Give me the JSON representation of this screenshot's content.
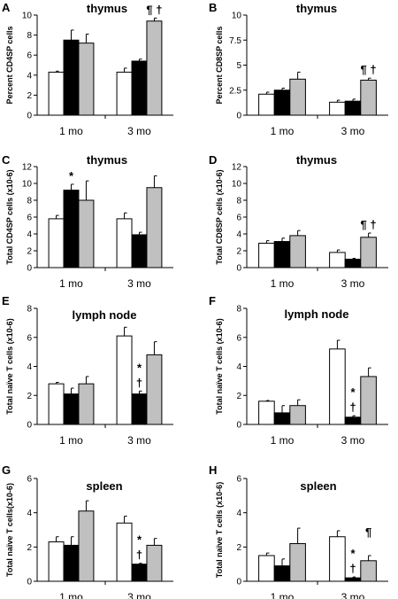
{
  "chart_data": [
    {
      "type": "bar",
      "panel": "A",
      "title": "thymus",
      "ylabel": "Percent CD4SP cells",
      "ylim": [
        0,
        10
      ],
      "yticks": [
        0,
        2,
        4,
        6,
        8,
        10
      ],
      "categories": [
        "1 mo",
        "3 mo"
      ],
      "series": [
        {
          "fill": "#ffffff",
          "values": [
            4.3,
            4.3
          ],
          "errors": [
            0.1,
            0.4
          ]
        },
        {
          "fill": "#000000",
          "values": [
            7.5,
            5.4
          ],
          "errors": [
            1.0,
            0.2
          ]
        },
        {
          "fill": "#c0c0c0",
          "values": [
            7.2,
            9.4
          ],
          "errors": [
            0.9,
            0.3
          ]
        }
      ],
      "annotations": [
        {
          "text": "¶ †",
          "category": 1,
          "series": 2
        }
      ]
    },
    {
      "type": "bar",
      "panel": "B",
      "title": "thymus",
      "ylabel": "Percent CD8SP cells",
      "ylim": [
        0,
        10
      ],
      "yticks": [
        0,
        2.5,
        5,
        7.5,
        10
      ],
      "categories": [
        "1 mo",
        "3 mo"
      ],
      "series": [
        {
          "fill": "#ffffff",
          "values": [
            2.1,
            1.3
          ],
          "errors": [
            0.2,
            0.2
          ]
        },
        {
          "fill": "#000000",
          "values": [
            2.5,
            1.4
          ],
          "errors": [
            0.2,
            0.2
          ]
        },
        {
          "fill": "#c0c0c0",
          "values": [
            3.6,
            3.5
          ],
          "errors": [
            0.7,
            0.2
          ]
        }
      ],
      "annotations": [
        {
          "text": "¶ †",
          "category": 1,
          "series": 2
        }
      ]
    },
    {
      "type": "bar",
      "panel": "C",
      "title": "thymus",
      "ylabel": "Total CD4SP cells (x10-6)",
      "ylim": [
        0,
        12
      ],
      "yticks": [
        0,
        2,
        4,
        6,
        8,
        10,
        12
      ],
      "categories": [
        "1 mo",
        "3 mo"
      ],
      "series": [
        {
          "fill": "#ffffff",
          "values": [
            5.8,
            5.8
          ],
          "errors": [
            0.4,
            0.7
          ]
        },
        {
          "fill": "#000000",
          "values": [
            9.2,
            3.9
          ],
          "errors": [
            0.7,
            0.3
          ]
        },
        {
          "fill": "#c0c0c0",
          "values": [
            8.0,
            9.5
          ],
          "errors": [
            2.3,
            1.4
          ]
        }
      ],
      "annotations": [
        {
          "text": "*",
          "category": 0,
          "series": 1
        }
      ]
    },
    {
      "type": "bar",
      "panel": "D",
      "title": "thymus",
      "ylabel": "Total CD8SP cells (x10-6)",
      "ylim": [
        0,
        12
      ],
      "yticks": [
        0,
        2,
        4,
        6,
        8,
        10,
        12
      ],
      "categories": [
        "1 mo",
        "3 mo"
      ],
      "series": [
        {
          "fill": "#ffffff",
          "values": [
            2.9,
            1.8
          ],
          "errors": [
            0.3,
            0.3
          ]
        },
        {
          "fill": "#000000",
          "values": [
            3.1,
            1.0
          ],
          "errors": [
            0.4,
            0.1
          ]
        },
        {
          "fill": "#c0c0c0",
          "values": [
            3.8,
            3.6
          ],
          "errors": [
            0.6,
            0.5
          ]
        }
      ],
      "annotations": [
        {
          "text": "¶ †",
          "category": 1,
          "series": 2
        }
      ]
    },
    {
      "type": "bar",
      "panel": "E",
      "title": "lymph node",
      "ylabel": "Total naïve T cells (x10-6)",
      "ylim": [
        0,
        8
      ],
      "yticks": [
        0,
        2,
        4,
        6,
        8
      ],
      "categories": [
        "1 mo",
        "3 mo"
      ],
      "series": [
        {
          "fill": "#ffffff",
          "values": [
            2.8,
            6.1
          ],
          "errors": [
            0.1,
            0.6
          ]
        },
        {
          "fill": "#000000",
          "values": [
            2.1,
            2.1
          ],
          "errors": [
            0.4,
            0.2
          ]
        },
        {
          "fill": "#c0c0c0",
          "values": [
            2.8,
            4.8
          ],
          "errors": [
            0.5,
            0.9
          ]
        }
      ],
      "annotations": [
        {
          "text": "*",
          "category": 1,
          "series": 1,
          "row": 1
        },
        {
          "text": "†",
          "category": 1,
          "series": 1,
          "row": 0
        }
      ]
    },
    {
      "type": "bar",
      "panel": "F",
      "title": "lymph node",
      "ylabel": "Total naïve T cells (x10-6)",
      "ylim": [
        0,
        8
      ],
      "yticks": [
        0,
        2,
        4,
        6,
        8
      ],
      "categories": [
        "1 mo",
        "3 mo"
      ],
      "series": [
        {
          "fill": "#ffffff",
          "values": [
            1.6,
            5.2
          ],
          "errors": [
            0.05,
            0.6
          ]
        },
        {
          "fill": "#000000",
          "values": [
            0.8,
            0.5
          ],
          "errors": [
            0.5,
            0.1
          ]
        },
        {
          "fill": "#c0c0c0",
          "values": [
            1.3,
            3.3
          ],
          "errors": [
            0.4,
            0.6
          ]
        }
      ],
      "annotations": [
        {
          "text": "*",
          "category": 1,
          "series": 1,
          "row": 1
        },
        {
          "text": "†",
          "category": 1,
          "series": 1,
          "row": 0
        }
      ]
    },
    {
      "type": "bar",
      "panel": "G",
      "title": "spleen",
      "ylabel": "Total naïve T cells(x10-6)",
      "ylim": [
        0,
        6
      ],
      "yticks": [
        0,
        2,
        4,
        6
      ],
      "categories": [
        "1 mo",
        "3 mo"
      ],
      "series": [
        {
          "fill": "#ffffff",
          "values": [
            2.3,
            3.4
          ],
          "errors": [
            0.3,
            0.4
          ]
        },
        {
          "fill": "#000000",
          "values": [
            2.1,
            1.0
          ],
          "errors": [
            0.5,
            0.05
          ]
        },
        {
          "fill": "#c0c0c0",
          "values": [
            4.1,
            2.1
          ],
          "errors": [
            0.6,
            0.4
          ]
        }
      ],
      "annotations": [
        {
          "text": "*",
          "category": 1,
          "series": 1,
          "row": 1
        },
        {
          "text": "†",
          "category": 1,
          "series": 1,
          "row": 0
        }
      ]
    },
    {
      "type": "bar",
      "panel": "H",
      "title": "spleen",
      "ylabel": "Total naïve T cells (x10-6)",
      "ylim": [
        0,
        6
      ],
      "yticks": [
        0,
        2,
        4,
        6
      ],
      "categories": [
        "1 mo",
        "3 mo"
      ],
      "series": [
        {
          "fill": "#ffffff",
          "values": [
            1.5,
            2.6
          ],
          "errors": [
            0.15,
            0.35
          ]
        },
        {
          "fill": "#000000",
          "values": [
            0.9,
            0.2
          ],
          "errors": [
            0.4,
            0.05
          ]
        },
        {
          "fill": "#c0c0c0",
          "values": [
            2.2,
            1.2
          ],
          "errors": [
            0.9,
            0.3
          ]
        }
      ],
      "annotations": [
        {
          "text": "*",
          "category": 1,
          "series": 1,
          "row": 1
        },
        {
          "text": "†",
          "category": 1,
          "series": 1,
          "row": 0
        },
        {
          "text": "¶",
          "category": 1,
          "series": 2,
          "row": 1
        }
      ]
    }
  ]
}
